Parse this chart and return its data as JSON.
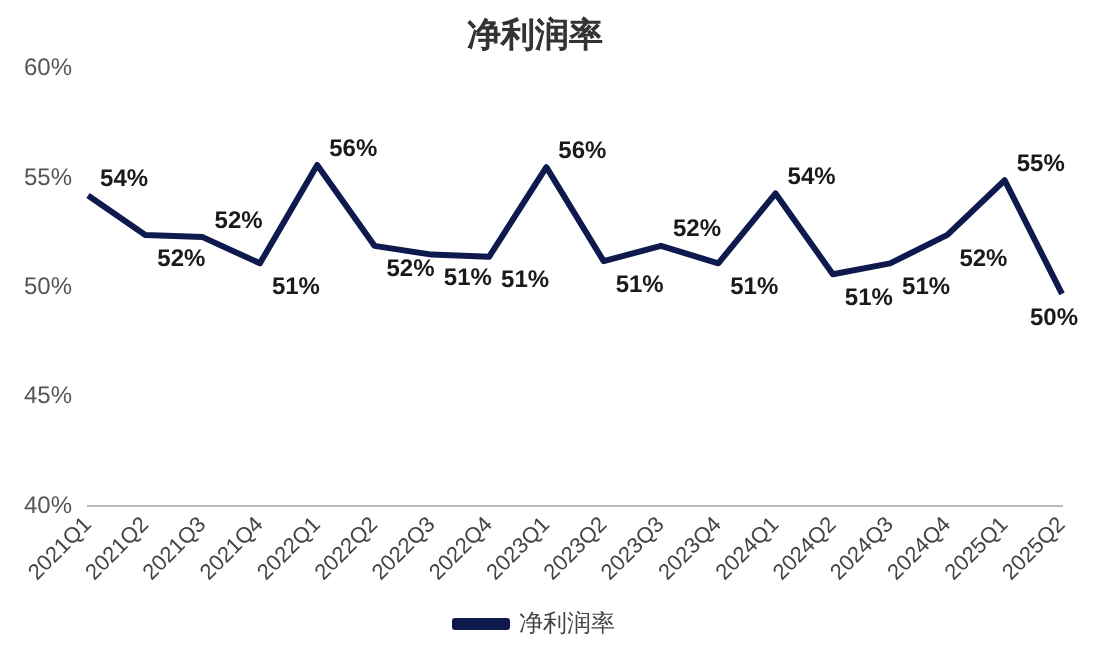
{
  "chart_data": {
    "type": "line",
    "title": "净利润率",
    "categories": [
      "2021Q1",
      "2021Q2",
      "2021Q3",
      "2021Q4",
      "2022Q1",
      "2022Q2",
      "2022Q3",
      "2022Q4",
      "2023Q1",
      "2023Q2",
      "2023Q3",
      "2023Q4",
      "2024Q1",
      "2024Q2",
      "2024Q3",
      "2024Q4",
      "2025Q1",
      "2025Q2"
    ],
    "series": [
      {
        "name": "净利润率",
        "color": "#0e1a4d",
        "values": [
          54.2,
          52.4,
          52.3,
          51.1,
          55.6,
          51.9,
          51.5,
          51.4,
          55.5,
          51.2,
          51.9,
          51.1,
          54.3,
          50.6,
          51.1,
          52.4,
          54.9,
          49.7
        ],
        "value_labels": [
          "54%",
          "52%",
          "52%",
          "51%",
          "56%",
          "52%",
          "51%",
          "51%",
          "56%",
          "51%",
          "52%",
          "51%",
          "54%",
          "51%",
          "51%",
          "52%",
          "55%",
          "50%"
        ]
      }
    ],
    "ylim": [
      40,
      60
    ],
    "yticks": [
      {
        "value": 40,
        "label": "40%"
      },
      {
        "value": 45,
        "label": "45%"
      },
      {
        "value": 50,
        "label": "50%"
      },
      {
        "value": 55,
        "label": "55%"
      },
      {
        "value": 60,
        "label": "60%"
      }
    ],
    "grid": false,
    "legend": "bottom",
    "marker": "none",
    "line_style": "solid"
  }
}
